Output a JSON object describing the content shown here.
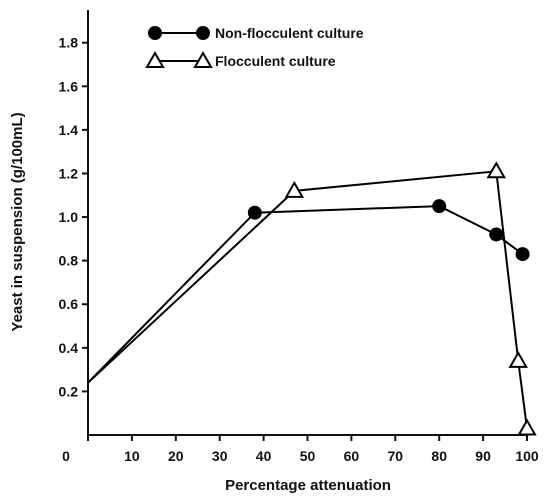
{
  "chart_data": {
    "type": "line",
    "xlabel": "Percentage attenuation",
    "ylabel": "Yeast in suspension (g/100mL)",
    "xlim": [
      0,
      100
    ],
    "ylim": [
      0,
      1.95
    ],
    "x_ticks": [
      "0",
      "10",
      "20",
      "30",
      "40",
      "50",
      "60",
      "70",
      "80",
      "90",
      "100"
    ],
    "y_ticks": [
      "0.2",
      "0.4",
      "0.6",
      "0.8",
      "1.0",
      "1.2",
      "1.4",
      "1.6",
      "1.8"
    ],
    "grid": false,
    "legend_position": "top-left",
    "series": [
      {
        "name": "Non-flocculent culture",
        "marker": "filled-circle",
        "color": "#000000",
        "points": [
          [
            0,
            0.24
          ],
          [
            38,
            1.02
          ],
          [
            80,
            1.05
          ],
          [
            93,
            0.92
          ],
          [
            99,
            0.83
          ]
        ]
      },
      {
        "name": "Flocculent culture",
        "marker": "open-triangle",
        "color": "#000000",
        "points": [
          [
            0,
            0.24
          ],
          [
            47,
            1.12
          ],
          [
            93,
            1.21
          ],
          [
            98,
            0.34
          ],
          [
            100,
            0.03
          ]
        ]
      }
    ]
  }
}
